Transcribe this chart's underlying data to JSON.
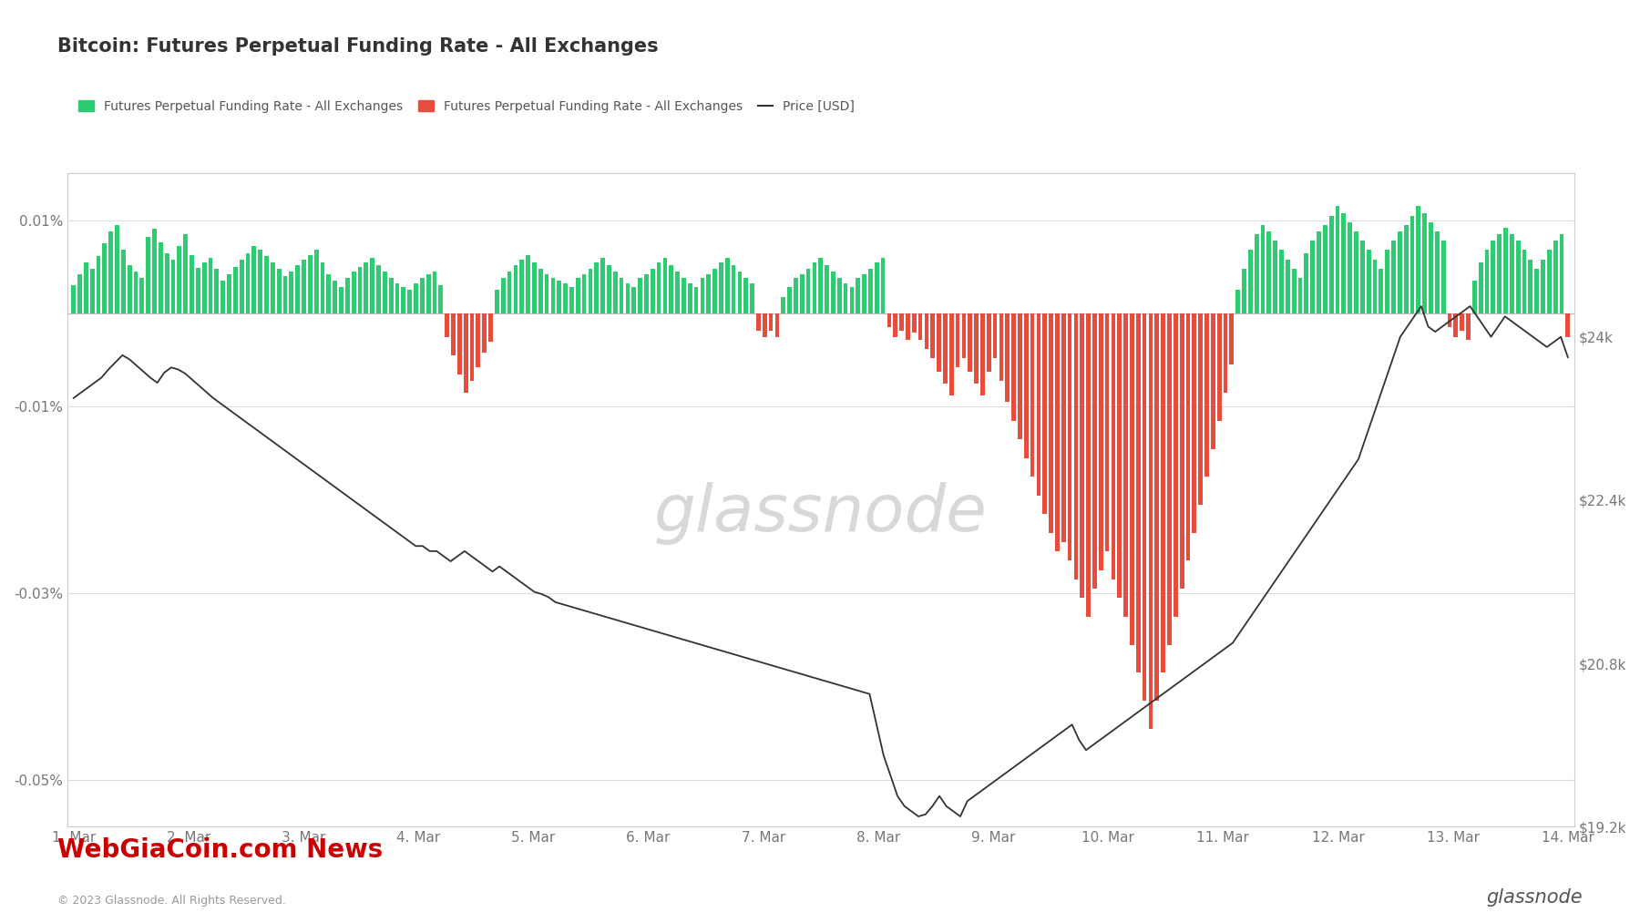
{
  "title": "Bitcoin: Futures Perpetual Funding Rate - All Exchanges",
  "background_color": "#ffffff",
  "grid_color": "#dddddd",
  "left_ylim": [
    -0.00055,
    0.00015
  ],
  "right_ylim": [
    19200,
    25600
  ],
  "left_yticks": [
    0.0001,
    -0.0001,
    -0.0003,
    -0.0005
  ],
  "left_ytick_labels": [
    "0.01%",
    "-0.01%",
    "-0.03%",
    "-0.05%"
  ],
  "right_yticks": [
    24000,
    22400,
    20800,
    19200
  ],
  "right_ytick_labels": [
    "$24k",
    "$22.4k",
    "$20.8k",
    "$19.2k"
  ],
  "xtick_labels": [
    "1. Mar",
    "2. Mar",
    "3. Mar",
    "4. Mar",
    "5. Mar",
    "6. Mar",
    "7. Mar",
    "8. Mar",
    "9. Mar",
    "10. Mar",
    "11. Mar",
    "12. Mar",
    "13. Mar",
    "14. Mar"
  ],
  "legend_items": [
    {
      "label": "Futures Perpetual Funding Rate - All Exchanges",
      "color": "#2ecc71",
      "type": "bar"
    },
    {
      "label": "Futures Perpetual Funding Rate - All Exchanges",
      "color": "#e74c3c",
      "type": "bar"
    },
    {
      "label": "Price [USD]",
      "color": "#333333",
      "type": "line"
    }
  ],
  "watermark": "glassnode",
  "footer_left": "© 2023 Glassnode. All Rights Reserved.",
  "footer_right": "glassnode",
  "funding_rates": [
    3e-05,
    4.2e-05,
    5.5e-05,
    4.8e-05,
    6.2e-05,
    7.5e-05,
    8.8e-05,
    9.5e-05,
    6.8e-05,
    5.2e-05,
    4.5e-05,
    3.8e-05,
    8.2e-05,
    9.1e-05,
    7.6e-05,
    6.5e-05,
    5.8e-05,
    7.2e-05,
    8.5e-05,
    6.3e-05,
    4.9e-05,
    5.5e-05,
    6e-05,
    4.8e-05,
    3.5e-05,
    4.2e-05,
    5e-05,
    5.8e-05,
    6.5e-05,
    7.2e-05,
    6.8e-05,
    6.2e-05,
    5.5e-05,
    4.8e-05,
    4e-05,
    4.5e-05,
    5.2e-05,
    5.8e-05,
    6.3e-05,
    6.8e-05,
    5.5e-05,
    4.2e-05,
    3.5e-05,
    2.8e-05,
    3.8e-05,
    4.5e-05,
    5e-05,
    5.5e-05,
    6e-05,
    5.2e-05,
    4.5e-05,
    3.8e-05,
    3.2e-05,
    2.8e-05,
    2.5e-05,
    3.2e-05,
    3.8e-05,
    4.2e-05,
    4.5e-05,
    3e-05,
    -2.5e-05,
    -4.5e-05,
    -6.5e-05,
    -8.5e-05,
    -7.2e-05,
    -5.8e-05,
    -4.2e-05,
    -3e-05,
    2.5e-05,
    3.8e-05,
    4.5e-05,
    5.2e-05,
    5.8e-05,
    6.3e-05,
    5.5e-05,
    4.8e-05,
    4.2e-05,
    3.8e-05,
    3.5e-05,
    3.2e-05,
    2.8e-05,
    3.8e-05,
    4.2e-05,
    4.8e-05,
    5.5e-05,
    6e-05,
    5.2e-05,
    4.5e-05,
    3.8e-05,
    3.2e-05,
    2.8e-05,
    3.8e-05,
    4.2e-05,
    4.8e-05,
    5.5e-05,
    6e-05,
    5.2e-05,
    4.5e-05,
    3.8e-05,
    3.2e-05,
    2.8e-05,
    3.8e-05,
    4.2e-05,
    4.8e-05,
    5.5e-05,
    6e-05,
    5.2e-05,
    4.5e-05,
    3.8e-05,
    3.2e-05,
    -1.8e-05,
    -2.5e-05,
    -1.8e-05,
    -2.5e-05,
    1.8e-05,
    2.8e-05,
    3.8e-05,
    4.2e-05,
    4.8e-05,
    5.5e-05,
    6e-05,
    5.2e-05,
    4.5e-05,
    3.8e-05,
    3.2e-05,
    2.8e-05,
    3.8e-05,
    4.2e-05,
    4.8e-05,
    5.5e-05,
    6e-05,
    -1.5e-05,
    -2.5e-05,
    -1.8e-05,
    -2.8e-05,
    -2e-05,
    -2.8e-05,
    -3.8e-05,
    -4.8e-05,
    -6.2e-05,
    -7.5e-05,
    -8.8e-05,
    -5.8e-05,
    -4.8e-05,
    -6.2e-05,
    -7.5e-05,
    -8.8e-05,
    -6.2e-05,
    -4.8e-05,
    -7.2e-05,
    -9.5e-05,
    -0.000115,
    -0.000135,
    -0.000155,
    -0.000175,
    -0.000195,
    -0.000215,
    -0.000235,
    -0.000255,
    -0.000245,
    -0.000265,
    -0.000285,
    -0.000305,
    -0.000325,
    -0.000295,
    -0.000275,
    -0.000255,
    -0.000285,
    -0.000305,
    -0.000325,
    -0.000355,
    -0.000385,
    -0.000415,
    -0.000445,
    -0.000415,
    -0.000385,
    -0.000355,
    -0.000325,
    -0.000295,
    -0.000265,
    -0.000235,
    -0.000205,
    -0.000175,
    -0.000145,
    -0.000115,
    -8.5e-05,
    -5.5e-05,
    2.5e-05,
    4.8e-05,
    6.8e-05,
    8.5e-05,
    9.5e-05,
    8.8e-05,
    7.8e-05,
    6.8e-05,
    5.8e-05,
    4.8e-05,
    3.8e-05,
    6.5e-05,
    7.8e-05,
    8.8e-05,
    9.5e-05,
    0.000105,
    0.000115,
    0.000108,
    9.8e-05,
    8.8e-05,
    7.8e-05,
    6.8e-05,
    5.8e-05,
    4.8e-05,
    6.8e-05,
    7.8e-05,
    8.8e-05,
    9.5e-05,
    0.000105,
    0.000115,
    0.000108,
    9.8e-05,
    8.8e-05,
    7.8e-05,
    -1.5e-05,
    -2.5e-05,
    -1.8e-05,
    -2.8e-05,
    3.5e-05,
    5.5e-05,
    6.8e-05,
    7.8e-05,
    8.5e-05,
    9.2e-05,
    8.5e-05,
    7.8e-05,
    6.8e-05,
    5.8e-05,
    4.8e-05,
    5.8e-05,
    6.8e-05,
    7.8e-05,
    8.5e-05,
    -2.5e-05
  ],
  "price_data": [
    23400,
    23450,
    23500,
    23550,
    23600,
    23680,
    23750,
    23820,
    23780,
    23720,
    23660,
    23600,
    23550,
    23650,
    23700,
    23680,
    23640,
    23580,
    23520,
    23460,
    23400,
    23350,
    23300,
    23250,
    23200,
    23150,
    23100,
    23050,
    23000,
    22950,
    22900,
    22850,
    22800,
    22750,
    22700,
    22650,
    22600,
    22550,
    22500,
    22450,
    22400,
    22350,
    22300,
    22250,
    22200,
    22150,
    22100,
    22050,
    22000,
    21950,
    21950,
    21900,
    21900,
    21850,
    21800,
    21850,
    21900,
    21850,
    21800,
    21750,
    21700,
    21750,
    21700,
    21650,
    21600,
    21550,
    21500,
    21480,
    21450,
    21400,
    21380,
    21360,
    21340,
    21320,
    21300,
    21280,
    21260,
    21240,
    21220,
    21200,
    21180,
    21160,
    21140,
    21120,
    21100,
    21080,
    21060,
    21040,
    21020,
    21000,
    20980,
    20960,
    20940,
    20920,
    20900,
    20880,
    20860,
    20840,
    20820,
    20800,
    20780,
    20760,
    20740,
    20720,
    20700,
    20680,
    20660,
    20640,
    20620,
    20600,
    20580,
    20560,
    20540,
    20520,
    20500,
    20200,
    19900,
    19700,
    19500,
    19400,
    19350,
    19300,
    19320,
    19400,
    19500,
    19400,
    19350,
    19300,
    19450,
    19500,
    19550,
    19600,
    19650,
    19700,
    19750,
    19800,
    19850,
    19900,
    19950,
    20000,
    20050,
    20100,
    20150,
    20200,
    20050,
    19950,
    20000,
    20050,
    20100,
    20150,
    20200,
    20250,
    20300,
    20350,
    20400,
    20450,
    20500,
    20550,
    20600,
    20650,
    20700,
    20750,
    20800,
    20850,
    20900,
    20950,
    21000,
    21100,
    21200,
    21300,
    21400,
    21500,
    21600,
    21700,
    21800,
    21900,
    22000,
    22100,
    22200,
    22300,
    22400,
    22500,
    22600,
    22700,
    22800,
    23000,
    23200,
    23400,
    23600,
    23800,
    24000,
    24100,
    24200,
    24300,
    24100,
    24050,
    24100,
    24150,
    24200,
    24250,
    24300,
    24200,
    24100,
    24000,
    24100,
    24200,
    24150,
    24100,
    24050,
    24000,
    23950,
    23900,
    23950,
    24000,
    23800
  ]
}
